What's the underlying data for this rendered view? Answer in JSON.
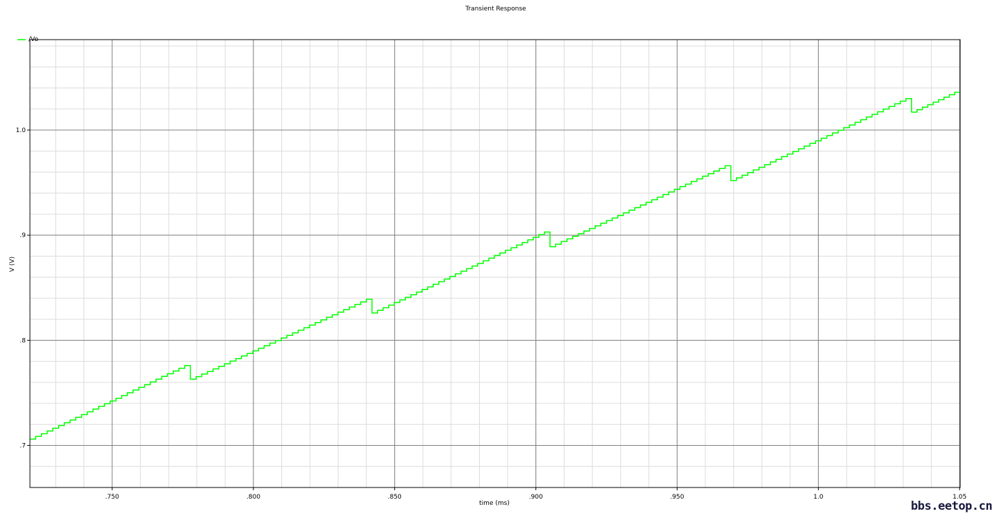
{
  "chart_data": {
    "type": "line",
    "title": "Transient Response",
    "xlabel": "time (ms)",
    "ylabel": "V (V)",
    "xlim": [
      0.7209,
      1.0502
    ],
    "ylim": [
      0.66,
      1.086
    ],
    "x_ticks": [
      0.75,
      0.8,
      0.85,
      0.9,
      0.95,
      1.0,
      1.05
    ],
    "x_tick_labels": [
      ".750",
      ".800",
      ".850",
      ".900",
      ".950",
      "1.0",
      "1.05"
    ],
    "y_ticks": [
      0.7,
      0.8,
      0.9,
      1.0
    ],
    "y_tick_labels": [
      ".7",
      ".8",
      ".9",
      "1.0"
    ],
    "grid": true,
    "legend_position": "top-left",
    "series": [
      {
        "name": "/Vo",
        "color": "#00ff00",
        "style": "staircase",
        "step_ms": 0.002,
        "segments": [
          {
            "t_start": 0.7209,
            "t_end": 0.7777,
            "v_start": 0.706,
            "v_end": 0.776
          },
          {
            "t_start": 0.7777,
            "t_end": 0.842,
            "v_start": 0.763,
            "v_end": 0.839
          },
          {
            "t_start": 0.842,
            "t_end": 0.905,
            "v_start": 0.826,
            "v_end": 0.903
          },
          {
            "t_start": 0.905,
            "t_end": 0.969,
            "v_start": 0.889,
            "v_end": 0.966
          },
          {
            "t_start": 0.969,
            "t_end": 1.033,
            "v_start": 0.952,
            "v_end": 1.03
          },
          {
            "t_start": 1.033,
            "t_end": 1.0502,
            "v_start": 1.017,
            "v_end": 1.036
          }
        ]
      }
    ]
  },
  "watermark": "bbs.eetop.cn"
}
